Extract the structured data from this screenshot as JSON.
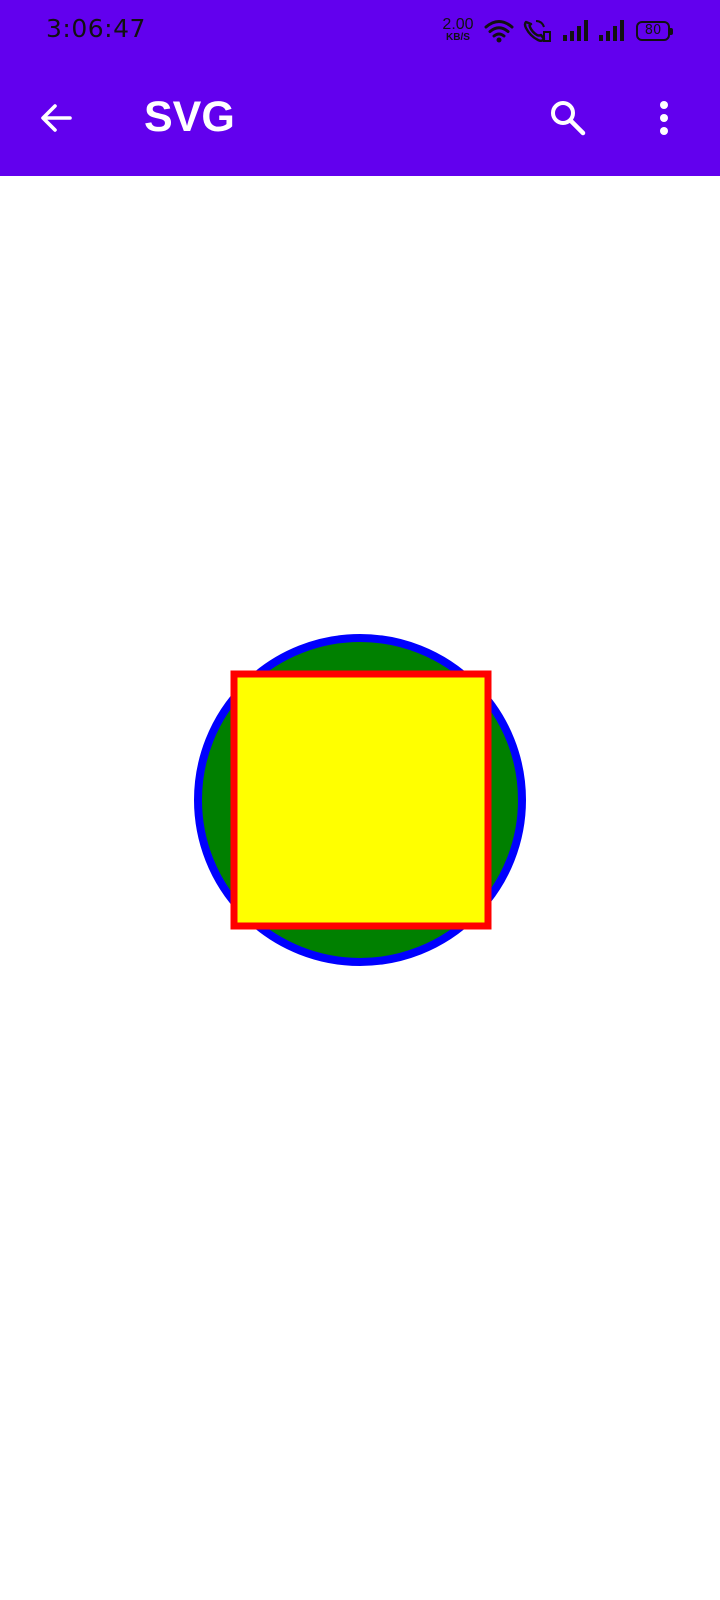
{
  "status_bar": {
    "time": "3:06:47",
    "net_speed_value": "2.00",
    "net_speed_unit": "KB/S",
    "battery": "80",
    "icons": [
      "wifi-icon",
      "volte-call-icon",
      "signal-icon",
      "signal-icon"
    ]
  },
  "app_bar": {
    "title": "SVG",
    "back_icon": "arrow-left-icon",
    "search_icon": "search-icon",
    "menu_icon": "more-vertical-icon",
    "background_color": "#6200ee"
  },
  "svg_demo": {
    "circle": {
      "fill": "#008000",
      "stroke": "#0000ff"
    },
    "square": {
      "fill": "#ffff00",
      "stroke": "#ff0000"
    }
  }
}
